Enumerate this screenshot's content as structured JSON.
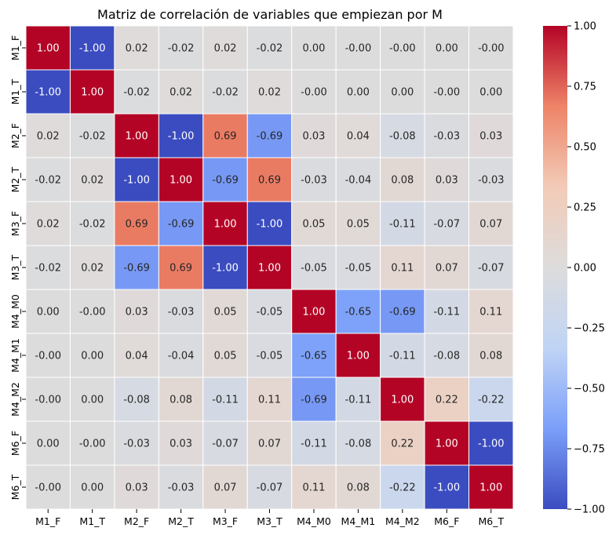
{
  "chart_data": {
    "type": "heatmap",
    "title": "Matriz de correlación de variables que empiezan por M",
    "xlabel": "",
    "ylabel": "",
    "x_categories": [
      "M1_F",
      "M1_T",
      "M2_F",
      "M2_T",
      "M3_F",
      "M3_T",
      "M4_M0",
      "M4_M1",
      "M4_M2",
      "M6_F",
      "M6_T"
    ],
    "y_categories": [
      "M1_F",
      "M1_T",
      "M2_F",
      "M2_T",
      "M3_F",
      "M3_T",
      "M4_M0",
      "M4_M1",
      "M4_M2",
      "M6_F",
      "M6_T"
    ],
    "values": [
      [
        1.0,
        -1.0,
        0.02,
        -0.02,
        0.02,
        -0.02,
        0.0,
        -0.0,
        -0.0,
        0.0,
        -0.0
      ],
      [
        -1.0,
        1.0,
        -0.02,
        0.02,
        -0.02,
        0.02,
        -0.0,
        0.0,
        0.0,
        -0.0,
        0.0
      ],
      [
        0.02,
        -0.02,
        1.0,
        -1.0,
        0.69,
        -0.69,
        0.03,
        0.04,
        -0.08,
        -0.03,
        0.03
      ],
      [
        -0.02,
        0.02,
        -1.0,
        1.0,
        -0.69,
        0.69,
        -0.03,
        -0.04,
        0.08,
        0.03,
        -0.03
      ],
      [
        0.02,
        -0.02,
        0.69,
        -0.69,
        1.0,
        -1.0,
        0.05,
        0.05,
        -0.11,
        -0.07,
        0.07
      ],
      [
        -0.02,
        0.02,
        -0.69,
        0.69,
        -1.0,
        1.0,
        -0.05,
        -0.05,
        0.11,
        0.07,
        -0.07
      ],
      [
        0.0,
        -0.0,
        0.03,
        -0.03,
        0.05,
        -0.05,
        1.0,
        -0.65,
        -0.69,
        -0.11,
        0.11
      ],
      [
        -0.0,
        0.0,
        0.04,
        -0.04,
        0.05,
        -0.05,
        -0.65,
        1.0,
        -0.11,
        -0.08,
        0.08
      ],
      [
        -0.0,
        0.0,
        -0.08,
        0.08,
        -0.11,
        0.11,
        -0.69,
        -0.11,
        1.0,
        0.22,
        -0.22
      ],
      [
        0.0,
        -0.0,
        -0.03,
        0.03,
        -0.07,
        0.07,
        -0.11,
        -0.08,
        0.22,
        1.0,
        -1.0
      ],
      [
        -0.0,
        0.0,
        0.03,
        -0.03,
        0.07,
        -0.07,
        0.11,
        0.08,
        -0.22,
        -1.0,
        1.0
      ]
    ],
    "cell_labels": [
      [
        "1.00",
        "-1.00",
        "0.02",
        "-0.02",
        "0.02",
        "-0.02",
        "0.00",
        "-0.00",
        "-0.00",
        "0.00",
        "-0.00"
      ],
      [
        "-1.00",
        "1.00",
        "-0.02",
        "0.02",
        "-0.02",
        "0.02",
        "-0.00",
        "0.00",
        "0.00",
        "-0.00",
        "0.00"
      ],
      [
        "0.02",
        "-0.02",
        "1.00",
        "-1.00",
        "0.69",
        "-0.69",
        "0.03",
        "0.04",
        "-0.08",
        "-0.03",
        "0.03"
      ],
      [
        "-0.02",
        "0.02",
        "-1.00",
        "1.00",
        "-0.69",
        "0.69",
        "-0.03",
        "-0.04",
        "0.08",
        "0.03",
        "-0.03"
      ],
      [
        "0.02",
        "-0.02",
        "0.69",
        "-0.69",
        "1.00",
        "-1.00",
        "0.05",
        "0.05",
        "-0.11",
        "-0.07",
        "0.07"
      ],
      [
        "-0.02",
        "0.02",
        "-0.69",
        "0.69",
        "-1.00",
        "1.00",
        "-0.05",
        "-0.05",
        "0.11",
        "0.07",
        "-0.07"
      ],
      [
        "0.00",
        "-0.00",
        "0.03",
        "-0.03",
        "0.05",
        "-0.05",
        "1.00",
        "-0.65",
        "-0.69",
        "-0.11",
        "0.11"
      ],
      [
        "-0.00",
        "0.00",
        "0.04",
        "-0.04",
        "0.05",
        "-0.05",
        "-0.65",
        "1.00",
        "-0.11",
        "-0.08",
        "0.08"
      ],
      [
        "-0.00",
        "0.00",
        "-0.08",
        "0.08",
        "-0.11",
        "0.11",
        "-0.69",
        "-0.11",
        "1.00",
        "0.22",
        "-0.22"
      ],
      [
        "0.00",
        "-0.00",
        "-0.03",
        "0.03",
        "-0.07",
        "0.07",
        "-0.11",
        "-0.08",
        "0.22",
        "1.00",
        "-1.00"
      ],
      [
        "-0.00",
        "0.00",
        "0.03",
        "-0.03",
        "0.07",
        "-0.07",
        "0.11",
        "0.08",
        "-0.22",
        "-1.00",
        "1.00"
      ]
    ],
    "colorbar": {
      "range": [
        -1.0,
        1.0
      ],
      "ticks": [
        1.0,
        0.75,
        0.5,
        0.25,
        0.0,
        -0.25,
        -0.5,
        -0.75,
        -1.0
      ],
      "tick_labels": [
        "1.00",
        "0.75",
        "0.50",
        "0.25",
        "0.00",
        "−0.25",
        "−0.50",
        "−0.75",
        "−1.00"
      ],
      "placement": "right"
    },
    "colormap": "coolwarm",
    "colormap_stops": [
      "#3b4cc0",
      "#7b9ff9",
      "#c0d4f5",
      "#dddcdc",
      "#f2cbb7",
      "#ee8468",
      "#b40426"
    ],
    "grid": true,
    "gridline_color": "#ffffff"
  }
}
